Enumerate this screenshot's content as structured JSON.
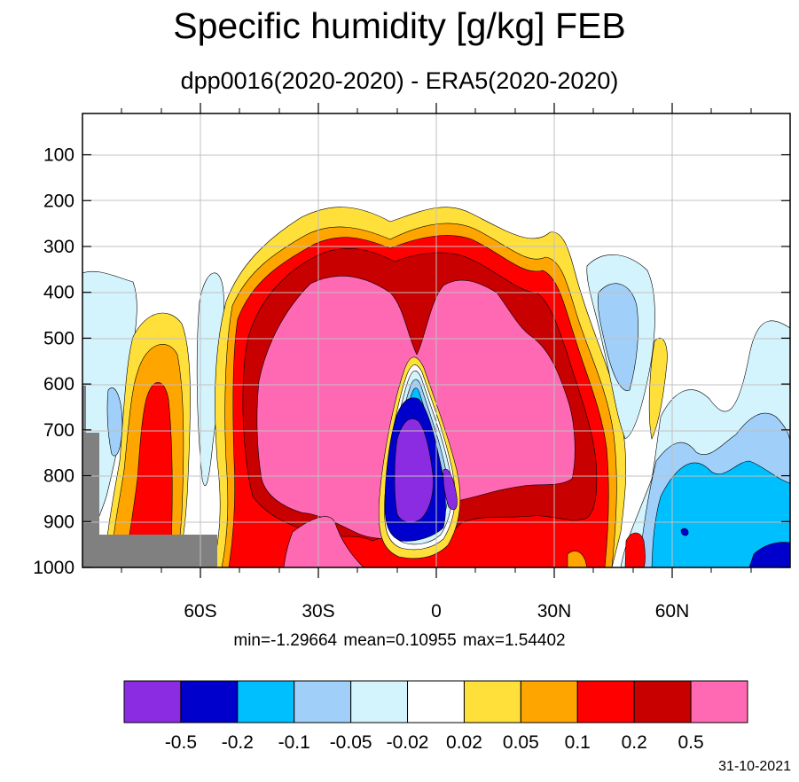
{
  "chart_data": {
    "type": "contour",
    "title": "Specific humidity [g/kg] FEB",
    "subtitle": "dpp0016(2020-2020) - ERA5(2020-2020)",
    "x_ticks": [
      "60S",
      "30S",
      "0",
      "30N",
      "60N"
    ],
    "x_tick_values": [
      -60,
      -30,
      0,
      30,
      60
    ],
    "x_range": [
      -90,
      90
    ],
    "y_ticks": [
      "100",
      "200",
      "300",
      "400",
      "500",
      "600",
      "700",
      "800",
      "900",
      "1000"
    ],
    "y_tick_values": [
      100,
      200,
      300,
      400,
      500,
      600,
      700,
      800,
      900,
      1000
    ],
    "y_range": [
      10,
      1000
    ],
    "grid": true,
    "stats_text": "min=-1.29664   mean=0.10955   max=1.54402",
    "stats": {
      "min": -1.29664,
      "mean": 0.10955,
      "max": 1.54402
    },
    "levels": [
      "-0.5",
      "-0.2",
      "-0.1",
      "-0.05",
      "-0.02",
      "0.02",
      "0.05",
      "0.1",
      "0.2",
      "0.5"
    ],
    "colors": [
      "#8b2be2",
      "#0000cd",
      "#00bfff",
      "#a0d0fa",
      "#d3f3fd",
      "#ffffff",
      "#ffe03a",
      "#ffa500",
      "#ff0000",
      "#c80000",
      "#ff69b4"
    ],
    "missing_color": "#808080",
    "date": "31-10-2021"
  }
}
